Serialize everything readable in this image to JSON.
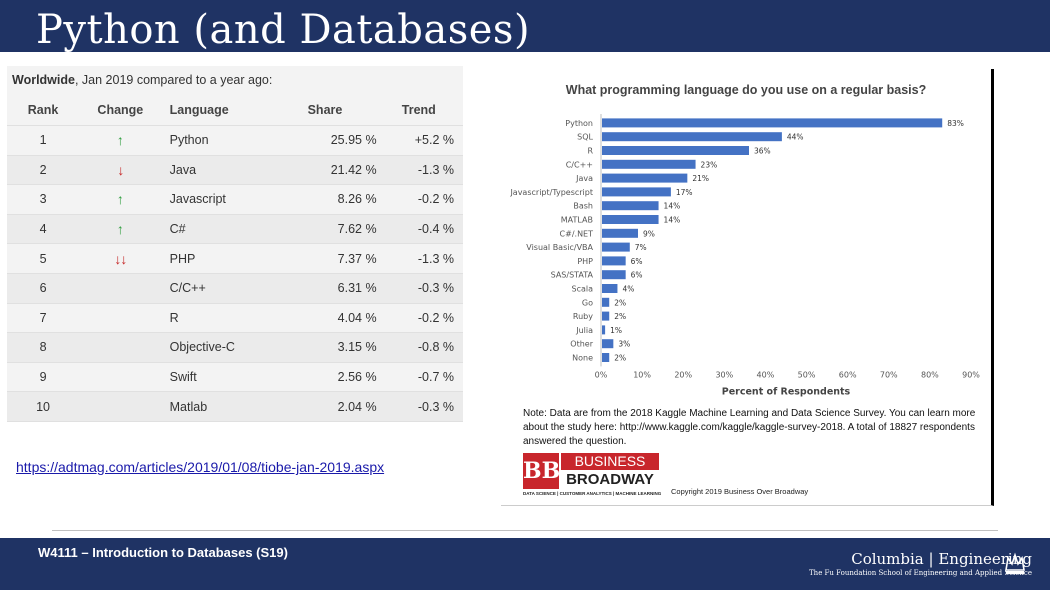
{
  "slide": {
    "title": "Python (and Databases)",
    "link": "https://adtmag.com/articles/2019/01/08/tiobe-jan-2019.aspx",
    "course": "W4111 – Introduction to Databases (S19)",
    "logo": {
      "name": "Columbia | Engineering",
      "subtitle": "The Fu Foundation School of Engineering and Applied Science"
    }
  },
  "tiobe": {
    "caption_bold": "Worldwide",
    "caption_rest": ", Jan 2019 compared to a year ago:",
    "headers": {
      "rank": "Rank",
      "change": "Change",
      "language": "Language",
      "share": "Share",
      "trend": "Trend"
    },
    "rows": [
      {
        "rank": "1",
        "change": "up",
        "arrow": "↑",
        "language": "Python",
        "share": "25.95 %",
        "trend": "+5.2 %"
      },
      {
        "rank": "2",
        "change": "down",
        "arrow": "↓",
        "language": "Java",
        "share": "21.42 %",
        "trend": "-1.3 %"
      },
      {
        "rank": "3",
        "change": "up",
        "arrow": "↑",
        "language": "Javascript",
        "share": "8.26 %",
        "trend": "-0.2 %"
      },
      {
        "rank": "4",
        "change": "up",
        "arrow": "↑",
        "language": "C#",
        "share": "7.62 %",
        "trend": "-0.4 %"
      },
      {
        "rank": "5",
        "change": "down-down",
        "arrow": "↓↓",
        "language": "PHP",
        "share": "7.37 %",
        "trend": "-1.3 %"
      },
      {
        "rank": "6",
        "change": "",
        "arrow": "",
        "language": "C/C++",
        "share": "6.31 %",
        "trend": "-0.3 %"
      },
      {
        "rank": "7",
        "change": "",
        "arrow": "",
        "language": "R",
        "share": "4.04 %",
        "trend": "-0.2 %"
      },
      {
        "rank": "8",
        "change": "",
        "arrow": "",
        "language": "Objective-C",
        "share": "3.15 %",
        "trend": "-0.8 %"
      },
      {
        "rank": "9",
        "change": "",
        "arrow": "",
        "language": "Swift",
        "share": "2.56 %",
        "trend": "-0.7 %"
      },
      {
        "rank": "10",
        "change": "",
        "arrow": "",
        "language": "Matlab",
        "share": "2.04 %",
        "trend": "-0.3 %"
      }
    ]
  },
  "kaggle": {
    "note": "Note: Data are from the 2018 Kaggle Machine Learning and Data Science Survey. You can learn more about the study here: http://www.kaggle.com/kaggle/kaggle-survey-2018.  A total of 18827 respondents answered the question.",
    "logo_mark": "BB",
    "logo_top": "BUSINESS",
    "logo_bottom": "BROADWAY",
    "logo_tagline": "DATA SCIENCE | CUSTOMER ANALYTICS | MACHINE LEARNING",
    "copyright": "Copyright 2019 Business Over Broadway"
  },
  "chart_data": {
    "type": "bar",
    "orientation": "horizontal",
    "title": "What programming language do you use on a regular basis?",
    "xlabel": "Percent of Respondents",
    "ylabel": "",
    "categories": [
      "Python",
      "SQL",
      "R",
      "C/C++",
      "Java",
      "Javascript/Typescript",
      "Bash",
      "MATLAB",
      "C#/.NET",
      "Visual Basic/VBA",
      "PHP",
      "SAS/STATA",
      "Scala",
      "Go",
      "Ruby",
      "Julia",
      "Other",
      "None"
    ],
    "values": [
      83,
      44,
      36,
      23,
      21,
      17,
      14,
      14,
      9,
      7,
      6,
      6,
      4,
      2,
      2,
      1,
      3,
      2
    ],
    "value_labels": [
      "83%",
      "44%",
      "36%",
      "23%",
      "21%",
      "17%",
      "14%",
      "14%",
      "9%",
      "7%",
      "6%",
      "6%",
      "4%",
      "2%",
      "2%",
      "1%",
      "3%",
      "2%"
    ],
    "xticks": [
      "0%",
      "10%",
      "20%",
      "30%",
      "40%",
      "50%",
      "60%",
      "70%",
      "80%",
      "90%"
    ],
    "xlim": [
      0,
      90
    ],
    "bar_color": "#4472c4"
  }
}
